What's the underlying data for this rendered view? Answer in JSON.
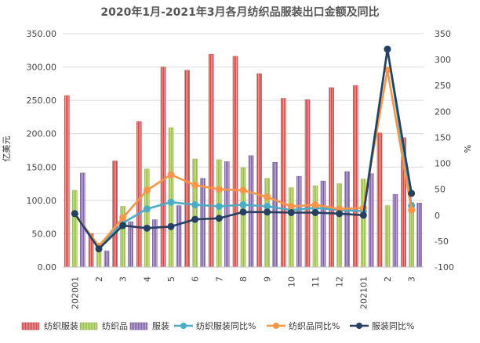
{
  "chart_data": {
    "type": "bar",
    "title": "2020年1月-2021年3月各月纺织品服装出口金额及同比",
    "ylabel": "亿美元",
    "y2label": "%",
    "ylim": [
      0,
      350
    ],
    "y2lim": [
      -100,
      350
    ],
    "yticks": [
      "0.00",
      "50.00",
      "100.00",
      "150.00",
      "200.00",
      "250.00",
      "300.00",
      "350.00"
    ],
    "y2ticks": [
      "-100",
      "-50",
      "0",
      "50",
      "100",
      "150",
      "200",
      "250",
      "300",
      "350"
    ],
    "grid": true,
    "legend_position": "bottom",
    "categories": [
      "202001",
      "2",
      "3",
      "4",
      "5",
      "6",
      "7",
      "8",
      "9",
      "10",
      "11",
      "12",
      "202101",
      "2",
      "3"
    ],
    "bar_series": [
      {
        "name": "纺织服装",
        "color": "#c0504d",
        "values": [
          257,
          50,
          159,
          218,
          300,
          295,
          319,
          316,
          290,
          253,
          251,
          269,
          272,
          201,
          194
        ]
      },
      {
        "name": "纺织品",
        "color": "#9bbb59",
        "values": [
          115,
          27,
          91,
          147,
          209,
          162,
          161,
          149,
          133,
          119,
          122,
          125,
          132,
          92,
          97
        ]
      },
      {
        "name": "服装",
        "color": "#8064a2",
        "values": [
          141,
          24,
          68,
          71,
          92,
          133,
          158,
          167,
          157,
          136,
          129,
          143,
          140,
          109,
          96
        ]
      }
    ],
    "line_series": [
      {
        "name": "纺织服装同比%",
        "color": "#4bacc6",
        "values": [
          3,
          -60,
          -15,
          12,
          25,
          20,
          17,
          20,
          17,
          10,
          14,
          10,
          8,
          320,
          18
        ]
      },
      {
        "name": "纺织品同比%",
        "color": "#f79646",
        "values": [
          3,
          -60,
          -5,
          48,
          78,
          58,
          50,
          48,
          35,
          17,
          20,
          12,
          14,
          280,
          10
        ]
      },
      {
        "name": "服装同比%",
        "color": "#254061",
        "values": [
          3,
          -65,
          -20,
          -25,
          -22,
          -8,
          -6,
          6,
          6,
          5,
          5,
          3,
          0,
          320,
          42
        ]
      }
    ]
  }
}
